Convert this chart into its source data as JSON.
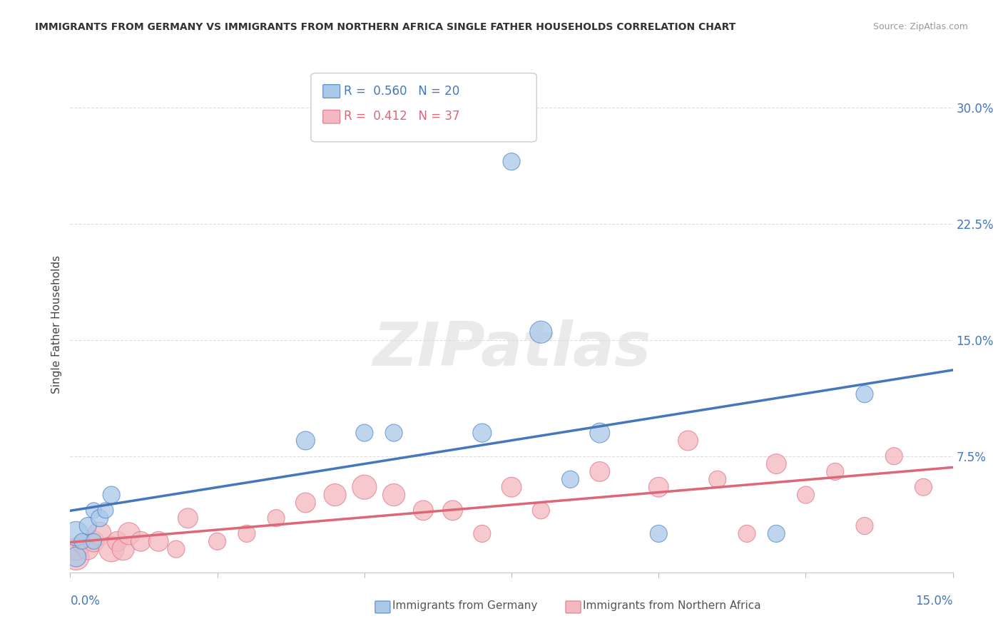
{
  "title": "IMMIGRANTS FROM GERMANY VS IMMIGRANTS FROM NORTHERN AFRICA SINGLE FATHER HOUSEHOLDS CORRELATION CHART",
  "source": "Source: ZipAtlas.com",
  "ylabel": "Single Father Households",
  "legend_label_blue": "Immigrants from Germany",
  "legend_label_pink": "Immigrants from Northern Africa",
  "R_blue": 0.56,
  "N_blue": 20,
  "R_pink": 0.412,
  "N_pink": 37,
  "color_blue_fill": "#aac8e8",
  "color_blue_edge": "#5588cc",
  "color_pink_fill": "#f4b8c0",
  "color_pink_edge": "#e07888",
  "color_blue_line": "#4477bb",
  "color_pink_line": "#dd6677",
  "watermark_text": "ZIPatlas",
  "xlim": [
    0.0,
    0.15
  ],
  "ylim": [
    0.0,
    0.32
  ],
  "yticks": [
    0.075,
    0.15,
    0.225,
    0.3
  ],
  "ytick_labels": [
    "7.5%",
    "15.0%",
    "22.5%",
    "30.0%"
  ],
  "blue_x": [
    0.001,
    0.001,
    0.002,
    0.003,
    0.004,
    0.004,
    0.005,
    0.006,
    0.007,
    0.04,
    0.05,
    0.055,
    0.07,
    0.075,
    0.08,
    0.085,
    0.09,
    0.1,
    0.12,
    0.135
  ],
  "blue_y": [
    0.01,
    0.025,
    0.02,
    0.03,
    0.02,
    0.04,
    0.035,
    0.04,
    0.05,
    0.085,
    0.09,
    0.09,
    0.09,
    0.265,
    0.155,
    0.06,
    0.09,
    0.025,
    0.025,
    0.115
  ],
  "blue_sizes": [
    400,
    600,
    250,
    300,
    250,
    250,
    300,
    250,
    300,
    350,
    300,
    300,
    350,
    300,
    500,
    300,
    400,
    300,
    300,
    300
  ],
  "pink_x": [
    0.001,
    0.001,
    0.002,
    0.003,
    0.004,
    0.005,
    0.007,
    0.008,
    0.009,
    0.01,
    0.012,
    0.015,
    0.018,
    0.02,
    0.025,
    0.03,
    0.035,
    0.04,
    0.045,
    0.05,
    0.055,
    0.06,
    0.065,
    0.07,
    0.075,
    0.08,
    0.09,
    0.1,
    0.105,
    0.11,
    0.115,
    0.12,
    0.125,
    0.13,
    0.135,
    0.14,
    0.145
  ],
  "pink_y": [
    0.01,
    0.015,
    0.018,
    0.015,
    0.02,
    0.025,
    0.015,
    0.02,
    0.015,
    0.025,
    0.02,
    0.02,
    0.015,
    0.035,
    0.02,
    0.025,
    0.035,
    0.045,
    0.05,
    0.055,
    0.05,
    0.04,
    0.04,
    0.025,
    0.055,
    0.04,
    0.065,
    0.055,
    0.085,
    0.06,
    0.025,
    0.07,
    0.05,
    0.065,
    0.03,
    0.075,
    0.055
  ],
  "pink_sizes": [
    700,
    500,
    350,
    450,
    450,
    550,
    650,
    400,
    500,
    500,
    400,
    400,
    300,
    400,
    300,
    300,
    300,
    400,
    500,
    600,
    500,
    400,
    400,
    300,
    400,
    300,
    400,
    400,
    400,
    300,
    300,
    400,
    300,
    300,
    300,
    300,
    300
  ]
}
